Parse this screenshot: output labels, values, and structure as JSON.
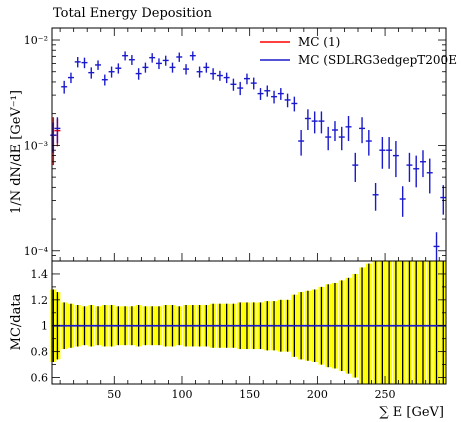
{
  "chart_data": {
    "type": "scatter",
    "title": "Total Energy Deposition",
    "xlabel": "∑ E [GeV]",
    "ylabel": "1/N dN/dE [GeV⁻¹]",
    "ratio_ylabel": "MC/data",
    "xlim": [
      4,
      295
    ],
    "ylim_log": [
      8e-05,
      0.013
    ],
    "ratio_ylim": [
      0.55,
      1.5
    ],
    "x_ticks": [
      50,
      100,
      150,
      200,
      250
    ],
    "y_ticks": [
      {
        "value": 0.0001,
        "label": "10⁻⁴"
      },
      {
        "value": 0.001,
        "label": "10⁻³"
      },
      {
        "value": 0.01,
        "label": "10⁻²"
      }
    ],
    "ratio_ticks": [
      0.6,
      0.8,
      1,
      1.2,
      1.4
    ],
    "ratio_tick_labels": [
      "0.6",
      "0.8",
      "1",
      "1.2",
      "1.4"
    ],
    "legend_position": "top-right",
    "series": [
      {
        "name": "MC (1)",
        "color": "#ff0000",
        "x": [
          5,
          8
        ],
        "y": [
          0.00125,
          0.00138
        ],
        "err": [
          0.0006,
          0.0004
        ]
      },
      {
        "name": "MC (SDLRG3edgepT200E",
        "color": "#1a1acc",
        "x": [
          5,
          8,
          13,
          18,
          23,
          28,
          33,
          38,
          43,
          48,
          53,
          58,
          63,
          68,
          73,
          78,
          83,
          88,
          93,
          98,
          103,
          108,
          113,
          118,
          123,
          128,
          133,
          138,
          143,
          148,
          153,
          158,
          163,
          168,
          173,
          178,
          183,
          188,
          193,
          198,
          203,
          208,
          213,
          218,
          223,
          228,
          233,
          238,
          243,
          248,
          253,
          258,
          263,
          268,
          273,
          278,
          283,
          288,
          293
        ],
        "y": [
          0.00125,
          0.00145,
          0.0036,
          0.0044,
          0.0062,
          0.0061,
          0.0049,
          0.0058,
          0.0042,
          0.005,
          0.0054,
          0.0071,
          0.0065,
          0.0048,
          0.0055,
          0.0068,
          0.006,
          0.0064,
          0.0055,
          0.0069,
          0.0053,
          0.0071,
          0.005,
          0.0055,
          0.0048,
          0.0046,
          0.0044,
          0.0038,
          0.0035,
          0.0043,
          0.0039,
          0.0031,
          0.0033,
          0.0029,
          0.0031,
          0.0027,
          0.0025,
          0.0011,
          0.0018,
          0.0017,
          0.0017,
          0.0012,
          0.0014,
          0.0012,
          0.0015,
          0.00065,
          0.00145,
          0.0011,
          0.00034,
          0.0009,
          0.0009,
          0.0008,
          0.00031,
          0.00065,
          0.0006,
          0.0007,
          0.00055,
          0.00011,
          0.00032
        ],
        "err": [
          0.0004,
          0.0004,
          0.0005,
          0.0005,
          0.0007,
          0.0007,
          0.0006,
          0.0006,
          0.0005,
          0.0006,
          0.0006,
          0.0007,
          0.0007,
          0.0006,
          0.0006,
          0.0007,
          0.0007,
          0.0007,
          0.0006,
          0.0007,
          0.0006,
          0.0007,
          0.0006,
          0.0006,
          0.0006,
          0.0005,
          0.0005,
          0.0005,
          0.0005,
          0.0005,
          0.0005,
          0.0004,
          0.0004,
          0.0004,
          0.0004,
          0.0004,
          0.0004,
          0.0003,
          0.0004,
          0.0004,
          0.0004,
          0.0003,
          0.0003,
          0.0003,
          0.0004,
          0.0002,
          0.0004,
          0.0003,
          0.0001,
          0.0003,
          0.0003,
          0.0003,
          0.0001,
          0.0002,
          0.0002,
          0.0002,
          0.0002,
          4e-05,
          0.0001
        ]
      }
    ],
    "ratio_band": {
      "color": "#ffff00",
      "x": [
        5,
        8,
        13,
        18,
        23,
        28,
        33,
        38,
        43,
        48,
        53,
        58,
        63,
        68,
        73,
        78,
        83,
        88,
        93,
        98,
        103,
        108,
        113,
        118,
        123,
        128,
        133,
        138,
        143,
        148,
        153,
        158,
        163,
        168,
        173,
        178,
        183,
        188,
        193,
        198,
        203,
        208,
        213,
        218,
        223,
        228,
        233,
        238,
        243,
        248,
        253,
        258,
        263,
        268,
        273,
        278,
        283,
        288,
        293
      ],
      "half_width": [
        0.28,
        0.26,
        0.18,
        0.17,
        0.16,
        0.15,
        0.16,
        0.15,
        0.16,
        0.16,
        0.15,
        0.15,
        0.15,
        0.16,
        0.15,
        0.15,
        0.15,
        0.16,
        0.16,
        0.15,
        0.16,
        0.16,
        0.16,
        0.16,
        0.17,
        0.17,
        0.17,
        0.17,
        0.18,
        0.18,
        0.18,
        0.18,
        0.19,
        0.19,
        0.2,
        0.2,
        0.24,
        0.26,
        0.27,
        0.28,
        0.3,
        0.32,
        0.33,
        0.35,
        0.37,
        0.4,
        0.45,
        0.48,
        0.55,
        0.5,
        0.52,
        0.5,
        0.55,
        0.55,
        0.5,
        0.55,
        0.55,
        0.6,
        0.55
      ]
    }
  }
}
